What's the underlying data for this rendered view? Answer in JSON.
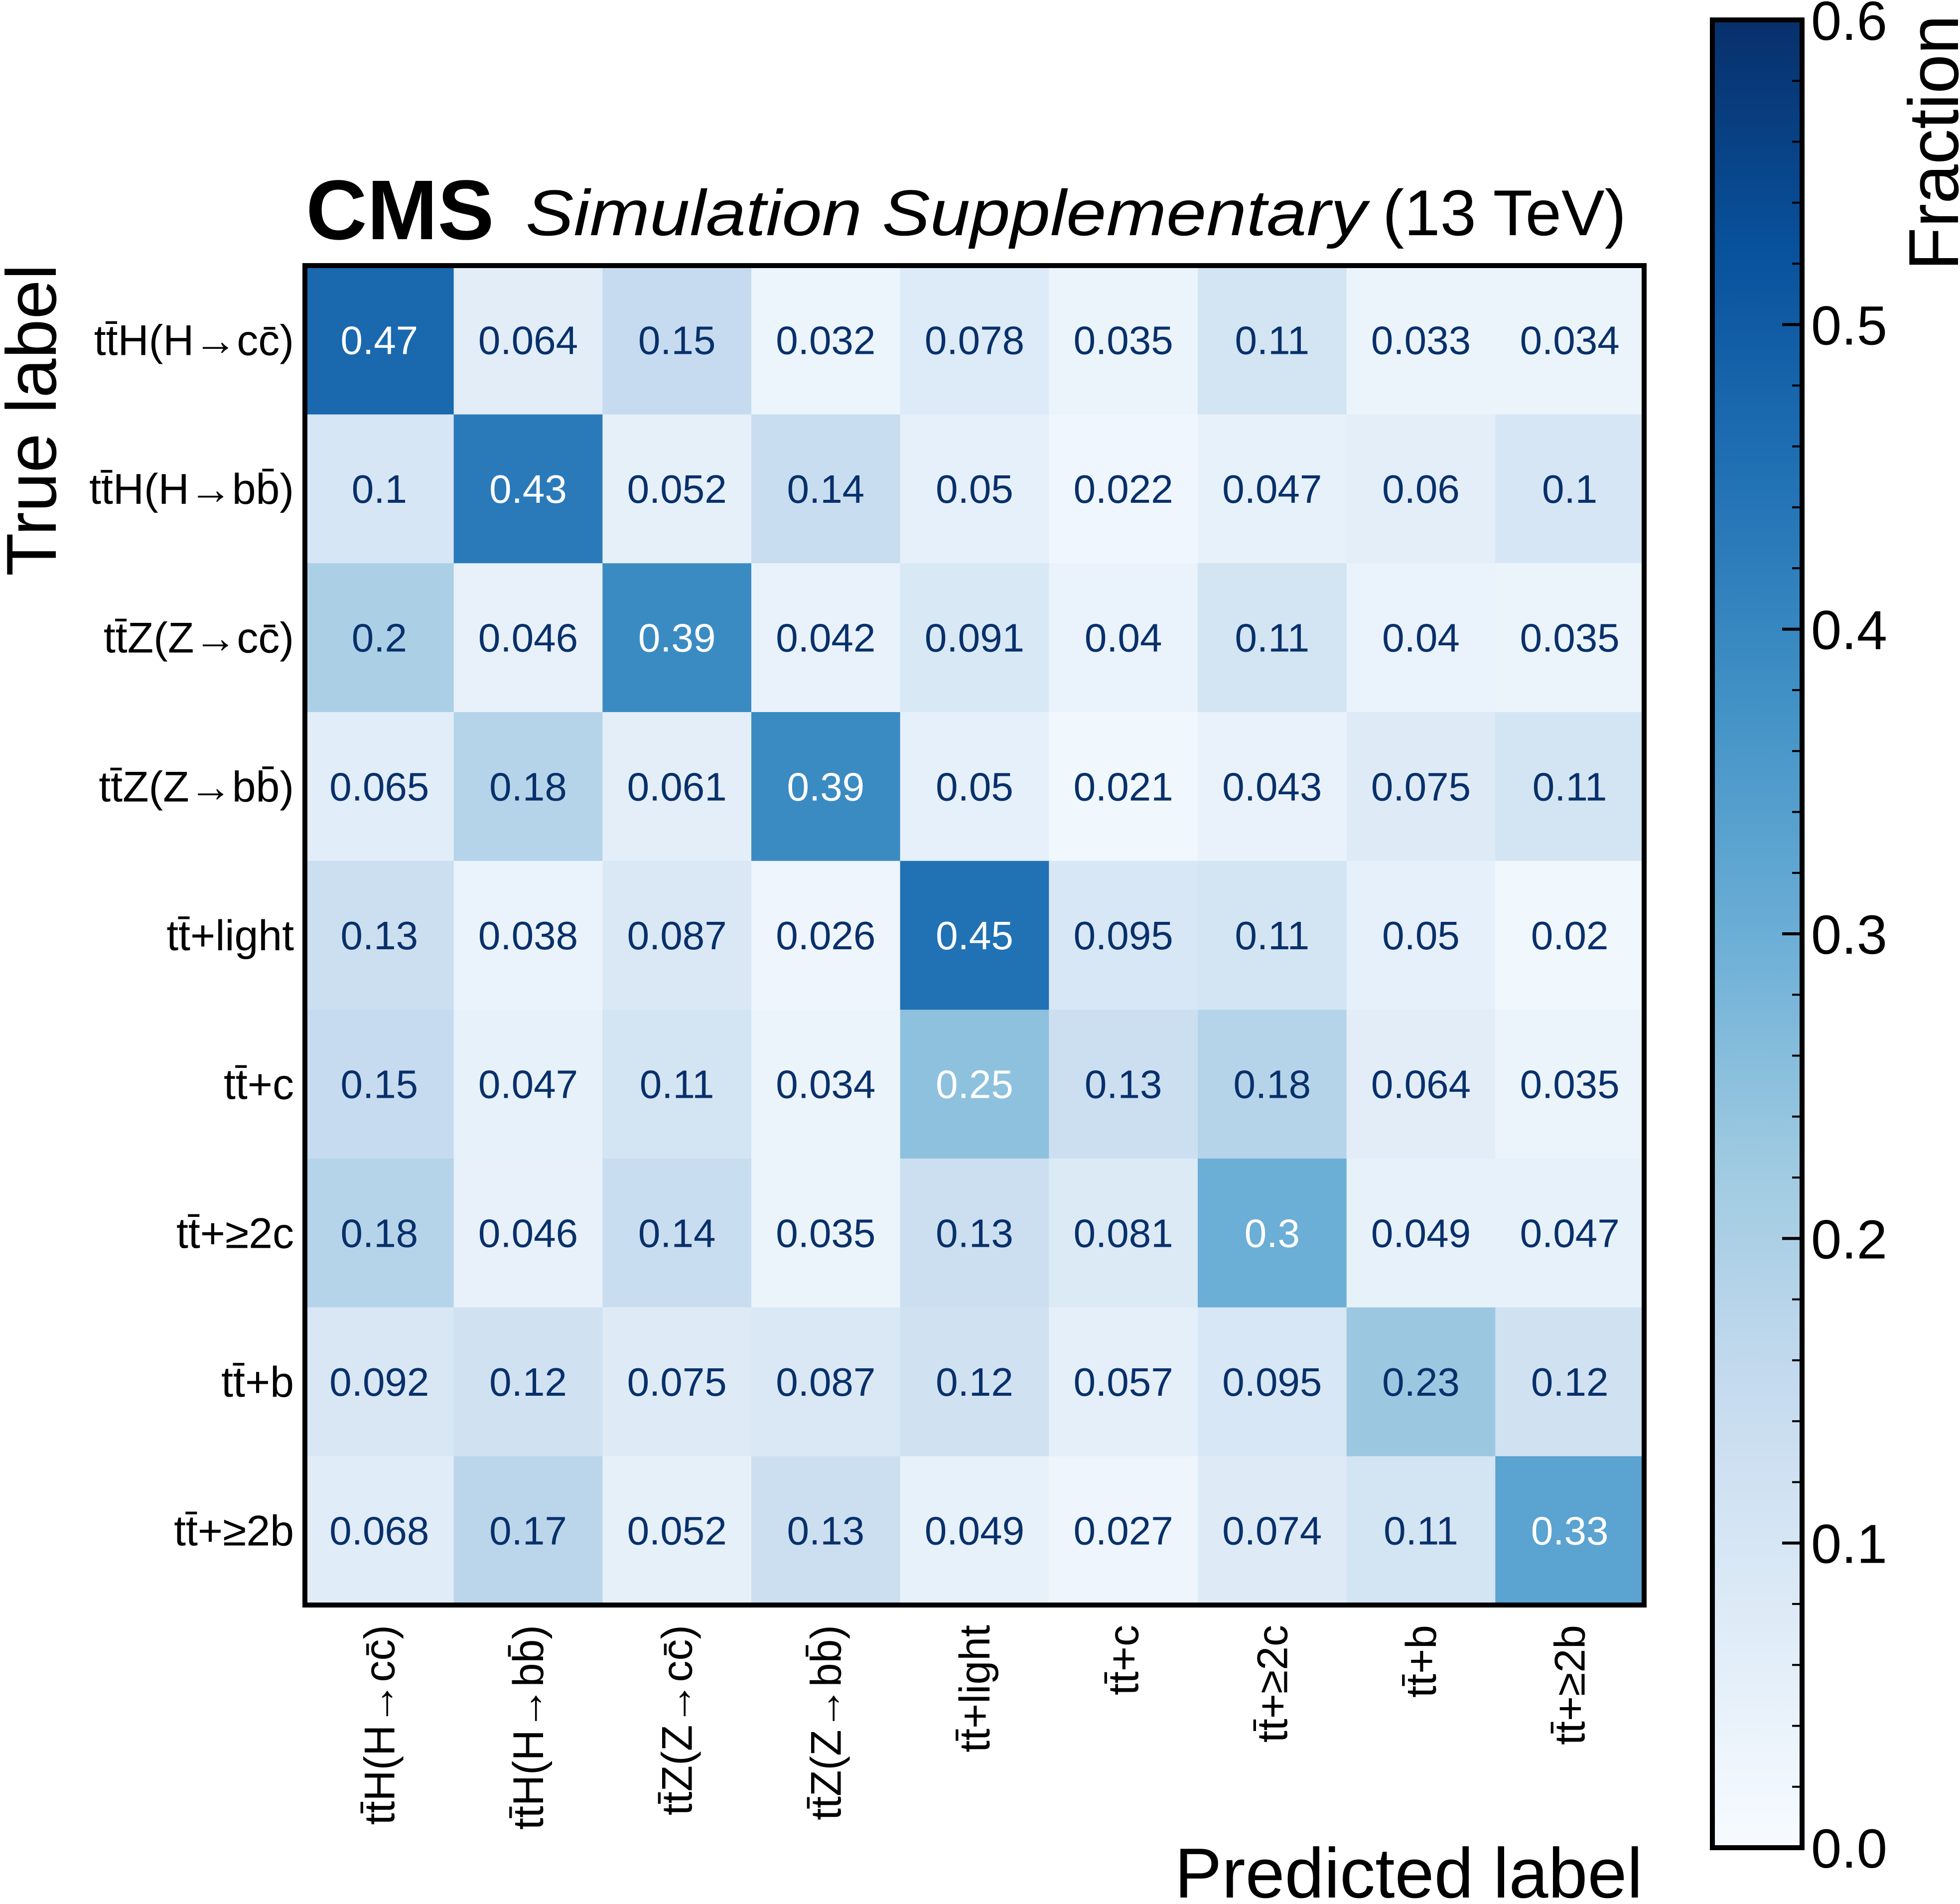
{
  "chart_data": {
    "type": "heatmap",
    "title": {
      "experiment": "CMS",
      "qualifier": "Simulation Supplementary",
      "energy": "(13 TeV)"
    },
    "xlabel": "Predicted label",
    "ylabel": "True label",
    "categories": [
      "tt̄H(H→cc̄)",
      "tt̄H(H→bb̄)",
      "tt̄Z(Z→cc̄)",
      "tt̄Z(Z→bb̄)",
      "tt̄+light",
      "tt̄+c",
      "tt̄+≥2c",
      "tt̄+b",
      "tt̄+≥2b"
    ],
    "matrix": [
      [
        0.47,
        0.064,
        0.15,
        0.032,
        0.078,
        0.035,
        0.11,
        0.033,
        0.034
      ],
      [
        0.1,
        0.43,
        0.052,
        0.14,
        0.05,
        0.022,
        0.047,
        0.06,
        0.1
      ],
      [
        0.2,
        0.046,
        0.39,
        0.042,
        0.091,
        0.04,
        0.11,
        0.04,
        0.035
      ],
      [
        0.065,
        0.18,
        0.061,
        0.39,
        0.05,
        0.021,
        0.043,
        0.075,
        0.11
      ],
      [
        0.13,
        0.038,
        0.087,
        0.026,
        0.45,
        0.095,
        0.11,
        0.05,
        0.02
      ],
      [
        0.15,
        0.047,
        0.11,
        0.034,
        0.25,
        0.13,
        0.18,
        0.064,
        0.035
      ],
      [
        0.18,
        0.046,
        0.14,
        0.035,
        0.13,
        0.081,
        0.3,
        0.049,
        0.047
      ],
      [
        0.092,
        0.12,
        0.075,
        0.087,
        0.12,
        0.057,
        0.095,
        0.23,
        0.12
      ],
      [
        0.068,
        0.17,
        0.052,
        0.13,
        0.049,
        0.027,
        0.074,
        0.11,
        0.33
      ]
    ],
    "colorbar": {
      "label": "Fraction",
      "range": [
        0.0,
        0.6
      ],
      "ticks": [
        "0.0",
        "0.1",
        "0.2",
        "0.3",
        "0.4",
        "0.5",
        "0.6"
      ],
      "colormap": "Blues"
    }
  }
}
